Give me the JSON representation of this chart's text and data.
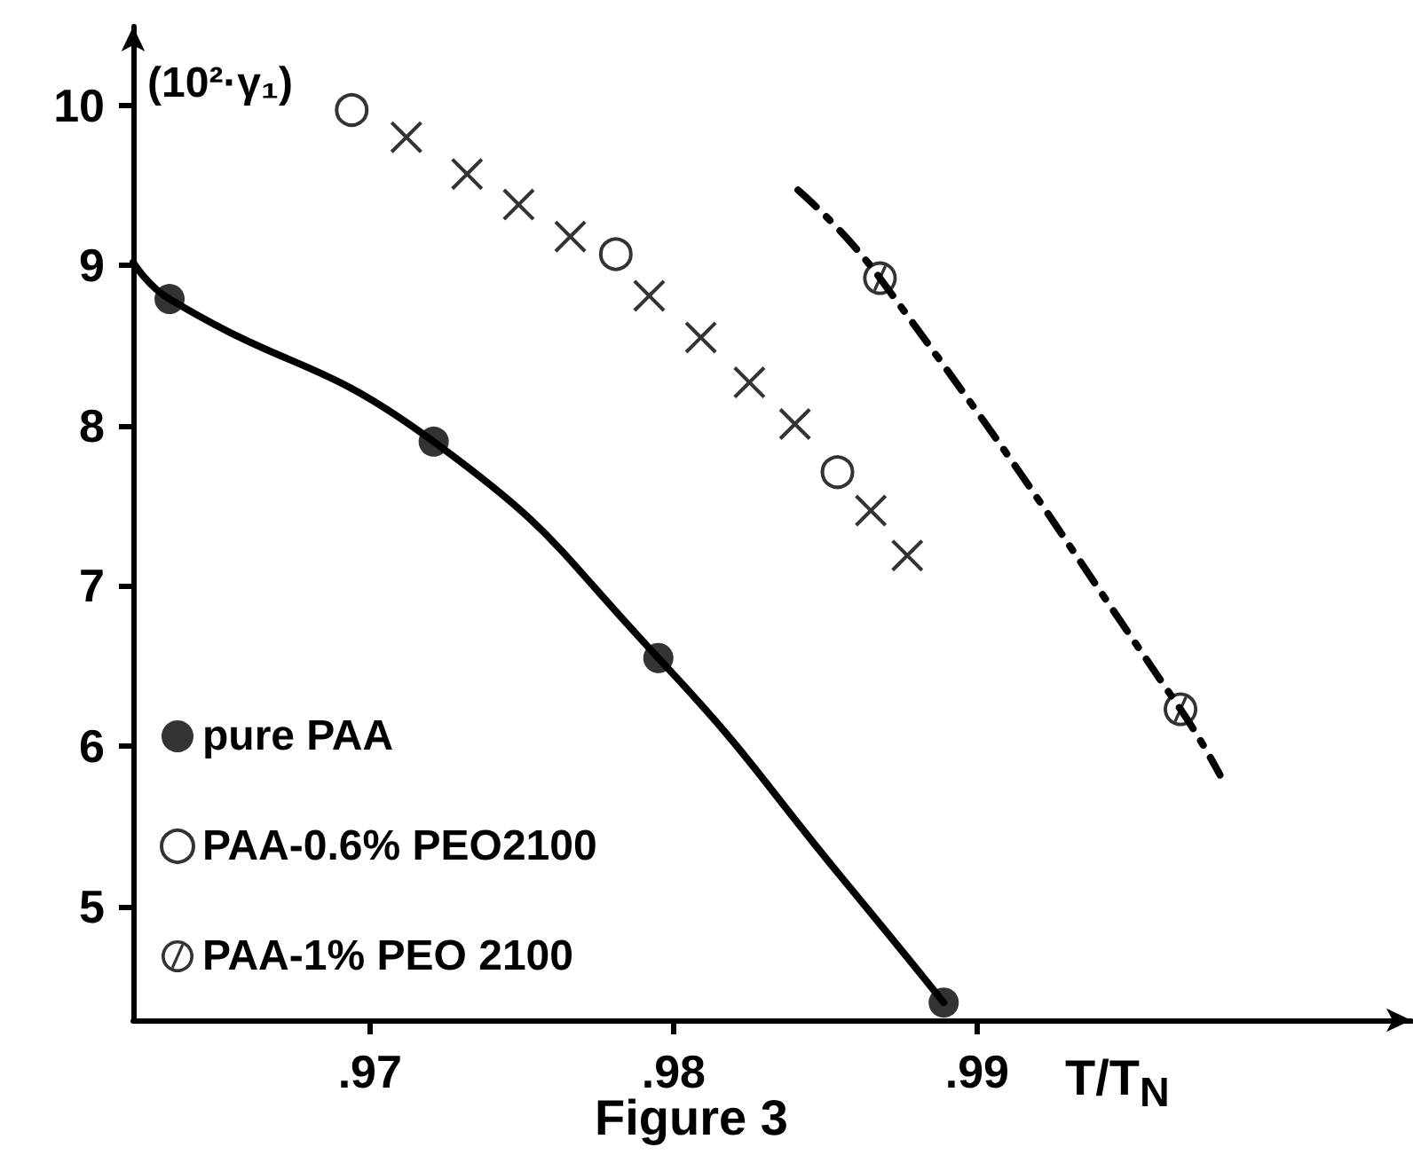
{
  "chart_data": {
    "type": "scatter",
    "title": "Figure 3",
    "xlabel": "T/T$_{N}$",
    "ylabel": "(10²·γ₁)",
    "xlim": [
      0.9622,
      1.0043
    ],
    "ylim": [
      4.29,
      10.49
    ],
    "xticks": [
      {
        "value": 0.97,
        "label": ".97"
      },
      {
        "value": 0.98,
        "label": ".98"
      },
      {
        "value": 0.99,
        "label": ".99"
      }
    ],
    "yticks": [
      5,
      6,
      7,
      8,
      9,
      10
    ],
    "grid": false,
    "legend": "bottom left",
    "series": [
      {
        "name": "pure PAA",
        "color": "#000000",
        "marker": "circle",
        "x": [
          0.9634,
          0.9721,
          0.9795,
          0.9889
        ],
        "values": [
          8.79,
          7.9,
          6.55,
          4.4
        ]
      },
      {
        "name": "PAA-0.6% PEO2100",
        "color": "#000000",
        "marker": "open-circle",
        "x": [
          0.9694,
          0.9781,
          0.9854
        ],
        "values": [
          9.97,
          9.07,
          7.71
        ]
      },
      {
        "name": "PAA-1% PEO 2100",
        "color": "#000000",
        "marker": "slashed-circle",
        "x": [
          0.9868,
          0.9967
        ],
        "values": [
          8.92,
          6.23
        ]
      },
      {
        "color": "#000000",
        "marker": "cross",
        "x": [
          0.9712,
          0.9732,
          0.9749,
          0.9766,
          0.9792,
          0.9809,
          0.9825,
          0.984,
          0.9865,
          0.9877
        ],
        "values": [
          9.8,
          9.57,
          9.38,
          9.18,
          8.81,
          8.55,
          8.27,
          8.01,
          7.47,
          7.19
        ]
      },
      {
        "type": "line",
        "color": "#000000",
        "marker": "none",
        "line_style": "solid",
        "x": [
          0.9622,
          0.9634,
          0.9721,
          0.9795,
          0.9858,
          0.9889
        ],
        "values": [
          9.02,
          8.79,
          7.9,
          6.55,
          5.12,
          4.4
        ]
      },
      {
        "type": "line",
        "color": "#000000",
        "marker": "none",
        "line_style": "dashdot",
        "x": [
          0.9841,
          0.9868,
          0.9967,
          0.998
        ],
        "values": [
          9.47,
          8.92,
          6.23,
          5.82
        ]
      }
    ]
  }
}
